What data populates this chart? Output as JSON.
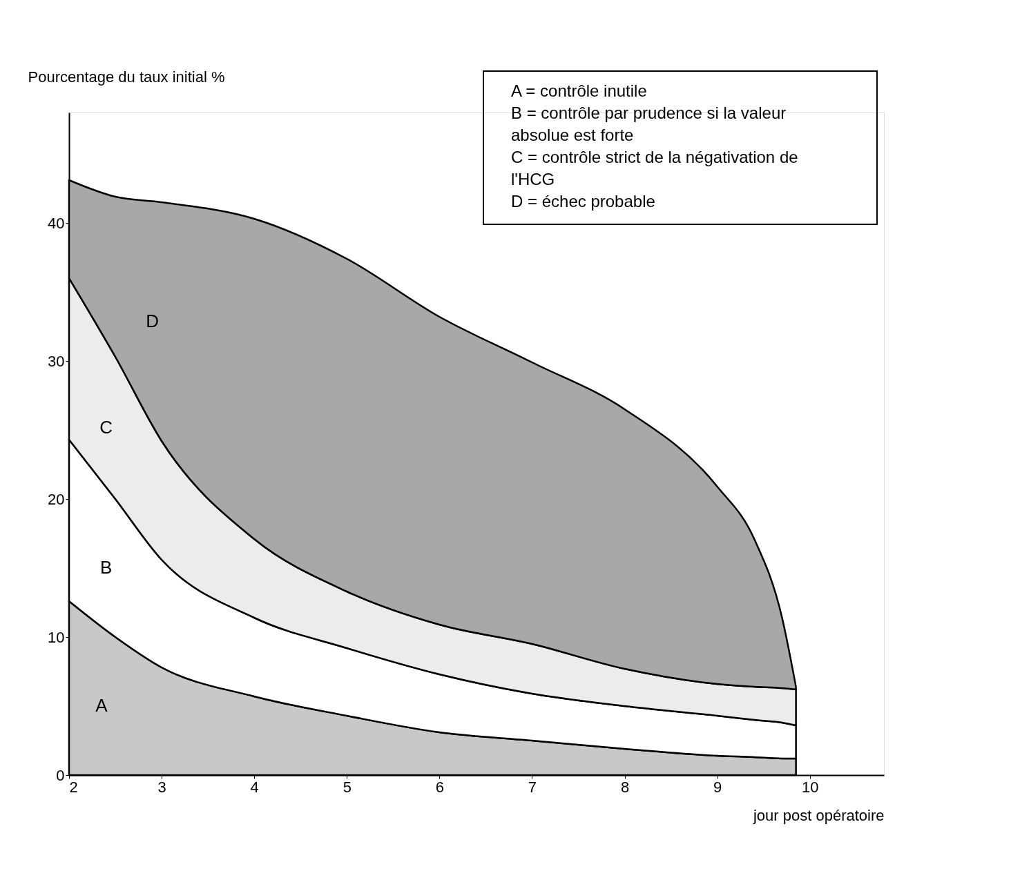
{
  "chart_data": {
    "type": "area",
    "stacked": true,
    "xlabel": "jour post opératoire",
    "ylabel": "Pourcentage du taux initial %",
    "x": [
      2,
      2.5,
      3,
      4,
      5,
      6,
      7,
      8,
      9,
      9.4,
      9.7,
      9.85
    ],
    "series": [
      {
        "name": "A",
        "color": "#c8c8c8",
        "values": [
          12.6,
          10.0,
          7.8,
          5.7,
          4.3,
          3.1,
          2.5,
          1.9,
          1.4,
          1.3,
          1.2,
          1.2
        ]
      },
      {
        "name": "B",
        "color": "#ffffff",
        "values": [
          11.7,
          10.0,
          7.8,
          5.7,
          4.9,
          4.2,
          3.4,
          3.1,
          2.9,
          2.7,
          2.6,
          2.4
        ]
      },
      {
        "name": "C",
        "color": "#ececec",
        "values": [
          11.7,
          10.3,
          8.6,
          5.7,
          4.1,
          3.6,
          3.6,
          2.7,
          2.3,
          2.4,
          2.5,
          2.6
        ]
      },
      {
        "name": "D",
        "color": "#a8a8a8",
        "values": [
          7.1,
          11.6,
          17.3,
          23.2,
          24.1,
          22.3,
          20.4,
          18.8,
          14.3,
          10.7,
          5.1,
          0.2
        ]
      }
    ],
    "xlim": [
      2,
      10.8
    ],
    "xticks": [
      2,
      3,
      4,
      5,
      6,
      7,
      8,
      9,
      10
    ],
    "ylim": [
      0,
      48
    ],
    "yticks": [
      0,
      10,
      20,
      30,
      40
    ],
    "grid": false,
    "annotations": [
      "A = contrôle inutile",
      "B = contrôle par prudence si la valeur absolue est forte",
      "C = contrôle strict de la négativation de l'HCG",
      "D = échec probable"
    ]
  }
}
